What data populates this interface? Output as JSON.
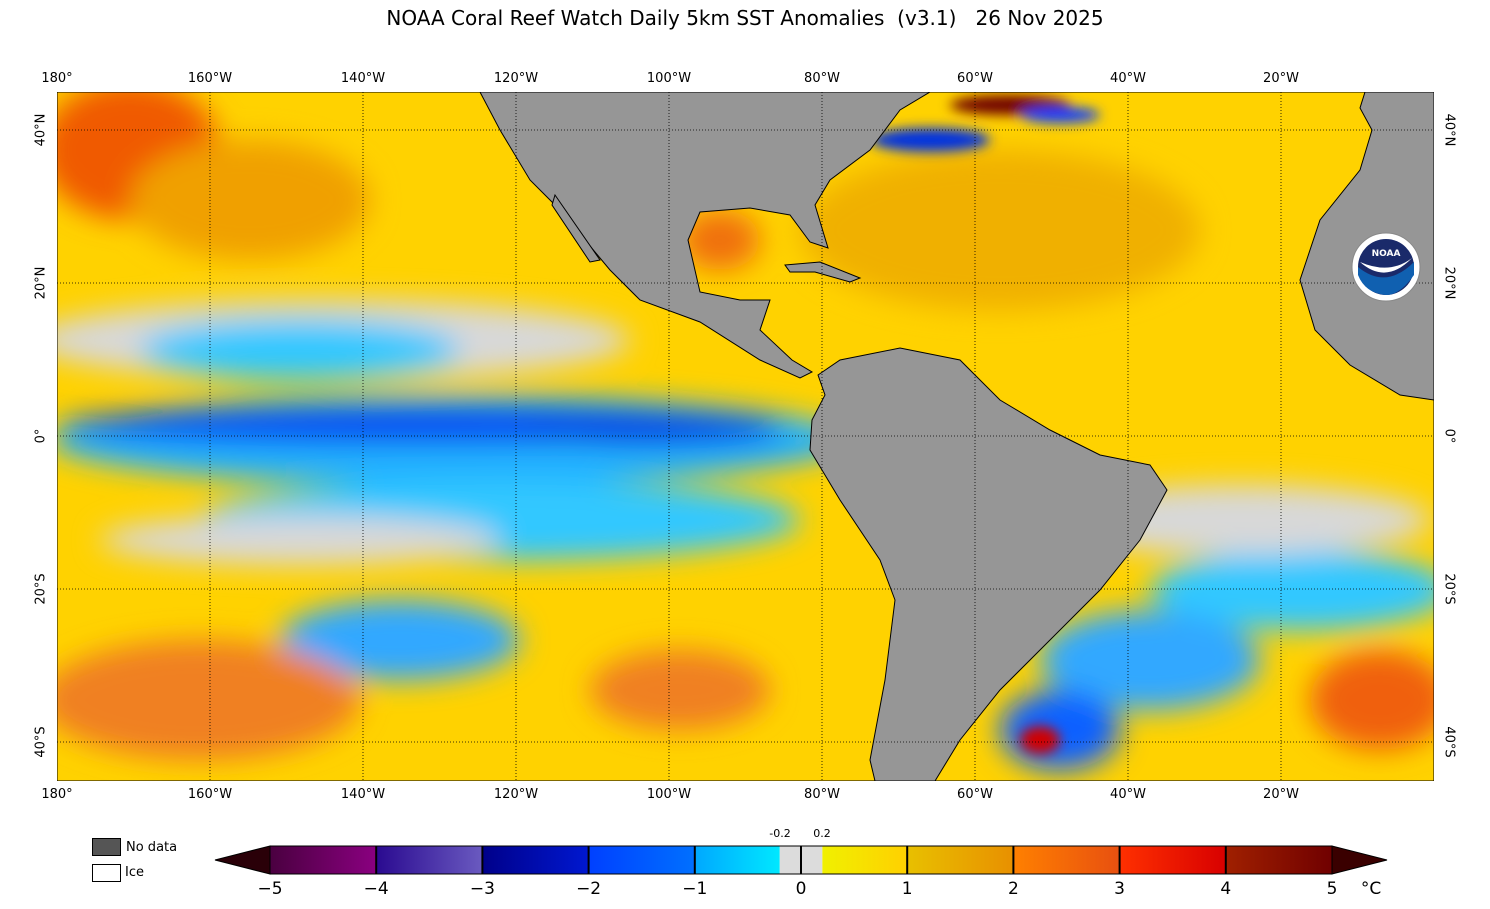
{
  "title": "NOAA Coral Reef Watch Daily 5km SST Anomalies  (v3.1)   26 Nov 2025",
  "axes": {
    "lon_labels": [
      "180°",
      "160°W",
      "140°W",
      "120°W",
      "100°W",
      "80°W",
      "60°W",
      "40°W",
      "20°W"
    ],
    "lat_labels": [
      "40°N",
      "20°N",
      "0°",
      "20°S",
      "40°S"
    ]
  },
  "legend": {
    "no_data": "No data",
    "ice": "Ice"
  },
  "colorbar": {
    "ticks": [
      "−5",
      "−4",
      "−3",
      "−2",
      "−1",
      "0",
      "1",
      "2",
      "3",
      "4",
      "5"
    ],
    "unit": "°C",
    "near_zero_labels": [
      "-0.2",
      "0.2"
    ],
    "colors": {
      "min_arrow": "#2a0008",
      "m5_4": [
        "#4a0040",
        "#8a0080"
      ],
      "m4_3": [
        "#2a0a90",
        "#6a5ac0"
      ],
      "m3_2": [
        "#00008a",
        "#0018d0"
      ],
      "m2_1": [
        "#0040ff",
        "#0070ff"
      ],
      "m1_0": [
        "#00a8ff",
        "#00e8ff"
      ],
      "neutral": "#dcdcdc",
      "p0_1": [
        "#f0f000",
        "#ffd000"
      ],
      "p1_2": [
        "#e8c000",
        "#e89000"
      ],
      "p2_3": [
        "#ff8000",
        "#e85010"
      ],
      "p3_4": [
        "#ff3000",
        "#d80000"
      ],
      "p4_5": [
        "#a02000",
        "#700000"
      ],
      "max_arrow": "#3a0000"
    }
  },
  "map_colors": {
    "land": "#969696",
    "ocean_base": "#ffd200",
    "no_data": "#555555"
  },
  "logo": "NOAA"
}
